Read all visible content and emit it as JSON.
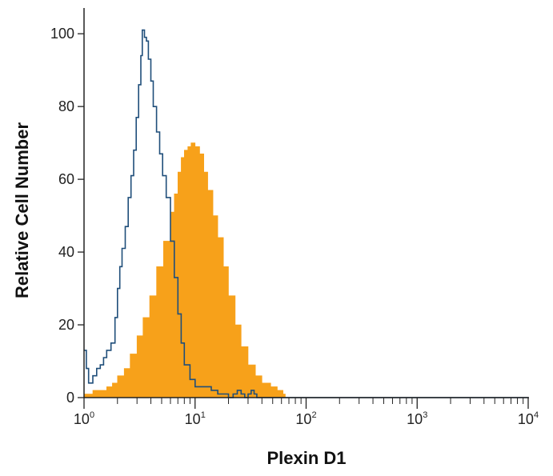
{
  "chart_data": {
    "type": "area",
    "title": "",
    "xlabel": "Plexin D1",
    "ylabel": "Relative Cell Number",
    "x_scale": "log",
    "xlim": [
      1,
      10000
    ],
    "ylim": [
      0,
      104
    ],
    "x_ticks": [
      {
        "base": "10",
        "exp": "0"
      },
      {
        "base": "10",
        "exp": "1"
      },
      {
        "base": "10",
        "exp": "2"
      },
      {
        "base": "10",
        "exp": "3"
      },
      {
        "base": "10",
        "exp": "4"
      }
    ],
    "y_ticks": [
      {
        "value": 0,
        "label": "0"
      },
      {
        "value": 20,
        "label": "20"
      },
      {
        "value": 40,
        "label": "40"
      },
      {
        "value": 60,
        "label": "60"
      },
      {
        "value": 80,
        "label": "80"
      },
      {
        "value": 100,
        "label": "100"
      }
    ],
    "grid": false,
    "legend": "none",
    "series": [
      {
        "style": "filled",
        "color": "#F7A11A",
        "points": [
          [
            1.0,
            1
          ],
          [
            1.2,
            2
          ],
          [
            1.4,
            2
          ],
          [
            1.6,
            3
          ],
          [
            1.8,
            4
          ],
          [
            2.0,
            6
          ],
          [
            2.3,
            8
          ],
          [
            2.6,
            12
          ],
          [
            3.0,
            17
          ],
          [
            3.4,
            22
          ],
          [
            3.9,
            28
          ],
          [
            4.5,
            36
          ],
          [
            5.2,
            43
          ],
          [
            6.0,
            51
          ],
          [
            6.5,
            56
          ],
          [
            7.0,
            62
          ],
          [
            7.5,
            66
          ],
          [
            8.0,
            68
          ],
          [
            8.6,
            69
          ],
          [
            9.2,
            70
          ],
          [
            10.0,
            69
          ],
          [
            11.0,
            67
          ],
          [
            12.0,
            62
          ],
          [
            13.0,
            57
          ],
          [
            14.5,
            50
          ],
          [
            16.0,
            44
          ],
          [
            18.0,
            36
          ],
          [
            20.0,
            28
          ],
          [
            23.0,
            20
          ],
          [
            26.0,
            14
          ],
          [
            30.0,
            9
          ],
          [
            35.0,
            6
          ],
          [
            40.0,
            4
          ],
          [
            48.0,
            3
          ],
          [
            55.0,
            2
          ],
          [
            62.0,
            1
          ],
          [
            65.0,
            0
          ]
        ]
      },
      {
        "style": "outline",
        "color": "#1F4E7A",
        "points": [
          [
            1.0,
            13
          ],
          [
            1.05,
            8
          ],
          [
            1.1,
            4
          ],
          [
            1.2,
            6
          ],
          [
            1.3,
            8
          ],
          [
            1.4,
            9
          ],
          [
            1.5,
            11
          ],
          [
            1.6,
            13
          ],
          [
            1.75,
            15
          ],
          [
            1.9,
            22
          ],
          [
            2.0,
            30
          ],
          [
            2.1,
            36
          ],
          [
            2.2,
            41
          ],
          [
            2.35,
            47
          ],
          [
            2.5,
            55
          ],
          [
            2.65,
            61
          ],
          [
            2.8,
            68
          ],
          [
            2.95,
            77
          ],
          [
            3.1,
            86
          ],
          [
            3.25,
            94
          ],
          [
            3.35,
            101
          ],
          [
            3.5,
            99
          ],
          [
            3.65,
            98
          ],
          [
            3.8,
            93
          ],
          [
            4.0,
            87
          ],
          [
            4.2,
            80
          ],
          [
            4.5,
            73
          ],
          [
            4.8,
            67
          ],
          [
            5.1,
            61
          ],
          [
            5.5,
            55
          ],
          [
            6.0,
            43
          ],
          [
            6.5,
            33
          ],
          [
            7.0,
            23
          ],
          [
            7.5,
            15
          ],
          [
            8.0,
            9
          ],
          [
            9.0,
            5
          ],
          [
            10.0,
            3
          ],
          [
            12.0,
            3
          ],
          [
            14.0,
            2
          ],
          [
            16.0,
            1
          ],
          [
            18.0,
            1
          ],
          [
            20.0,
            0
          ],
          [
            22.0,
            1
          ],
          [
            24.0,
            2
          ],
          [
            26.0,
            1
          ],
          [
            28.0,
            0
          ],
          [
            30.0,
            1
          ],
          [
            32.0,
            2
          ],
          [
            34.0,
            1
          ],
          [
            36.0,
            0
          ],
          [
            10000.0,
            0
          ]
        ]
      }
    ]
  }
}
